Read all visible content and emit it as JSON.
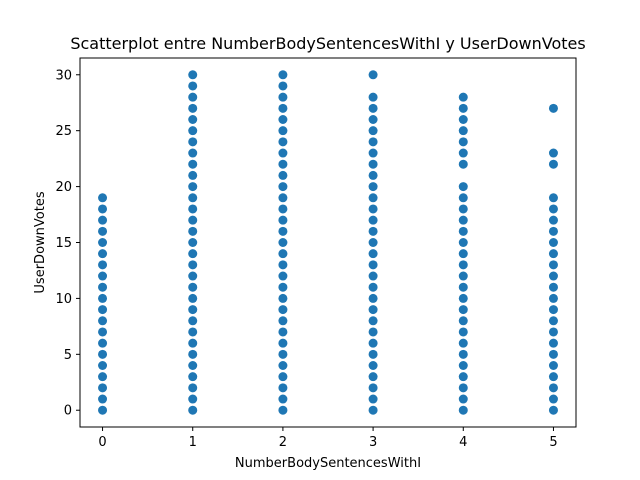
{
  "chart_data": {
    "type": "scatter",
    "title": "Scatterplot entre NumberBodySentencesWithI y UserDownVotes",
    "xlabel": "NumberBodySentencesWithI",
    "ylabel": "UserDownVotes",
    "xlim": [
      -0.25,
      5.25
    ],
    "ylim": [
      -1.5,
      31.5
    ],
    "xticks": [
      0,
      1,
      2,
      3,
      4,
      5
    ],
    "yticks": [
      0,
      5,
      10,
      15,
      20,
      25,
      30
    ],
    "grid": false,
    "legend": "none",
    "marker_color": "#1f77b4",
    "series": [
      {
        "points": [
          {
            "x": 0,
            "y": [
              0,
              1,
              2,
              3,
              4,
              5,
              6,
              7,
              8,
              9,
              10,
              11,
              12,
              13,
              14,
              15,
              16,
              17,
              18,
              19
            ]
          },
          {
            "x": 1,
            "y": [
              0,
              1,
              2,
              3,
              4,
              5,
              6,
              7,
              8,
              9,
              10,
              11,
              12,
              13,
              14,
              15,
              16,
              17,
              18,
              19,
              20,
              21,
              22,
              23,
              24,
              25,
              26,
              27,
              28,
              29,
              30
            ]
          },
          {
            "x": 2,
            "y": [
              0,
              1,
              2,
              3,
              4,
              5,
              6,
              7,
              8,
              9,
              10,
              11,
              12,
              13,
              14,
              15,
              16,
              17,
              18,
              19,
              20,
              21,
              22,
              23,
              24,
              25,
              26,
              27,
              28,
              29,
              30
            ]
          },
          {
            "x": 3,
            "y": [
              0,
              1,
              2,
              3,
              4,
              5,
              6,
              7,
              8,
              9,
              10,
              11,
              12,
              13,
              14,
              15,
              16,
              17,
              18,
              19,
              20,
              21,
              22,
              23,
              24,
              25,
              26,
              27,
              28,
              30
            ]
          },
          {
            "x": 4,
            "y": [
              0,
              1,
              2,
              3,
              4,
              5,
              6,
              7,
              8,
              9,
              10,
              11,
              12,
              13,
              14,
              15,
              16,
              17,
              18,
              19,
              20,
              22,
              23,
              24,
              25,
              26,
              27,
              28
            ]
          },
          {
            "x": 5,
            "y": [
              0,
              1,
              2,
              3,
              4,
              5,
              6,
              7,
              8,
              9,
              10,
              11,
              12,
              13,
              14,
              15,
              16,
              17,
              18,
              19,
              22,
              23,
              27
            ]
          }
        ]
      }
    ]
  }
}
